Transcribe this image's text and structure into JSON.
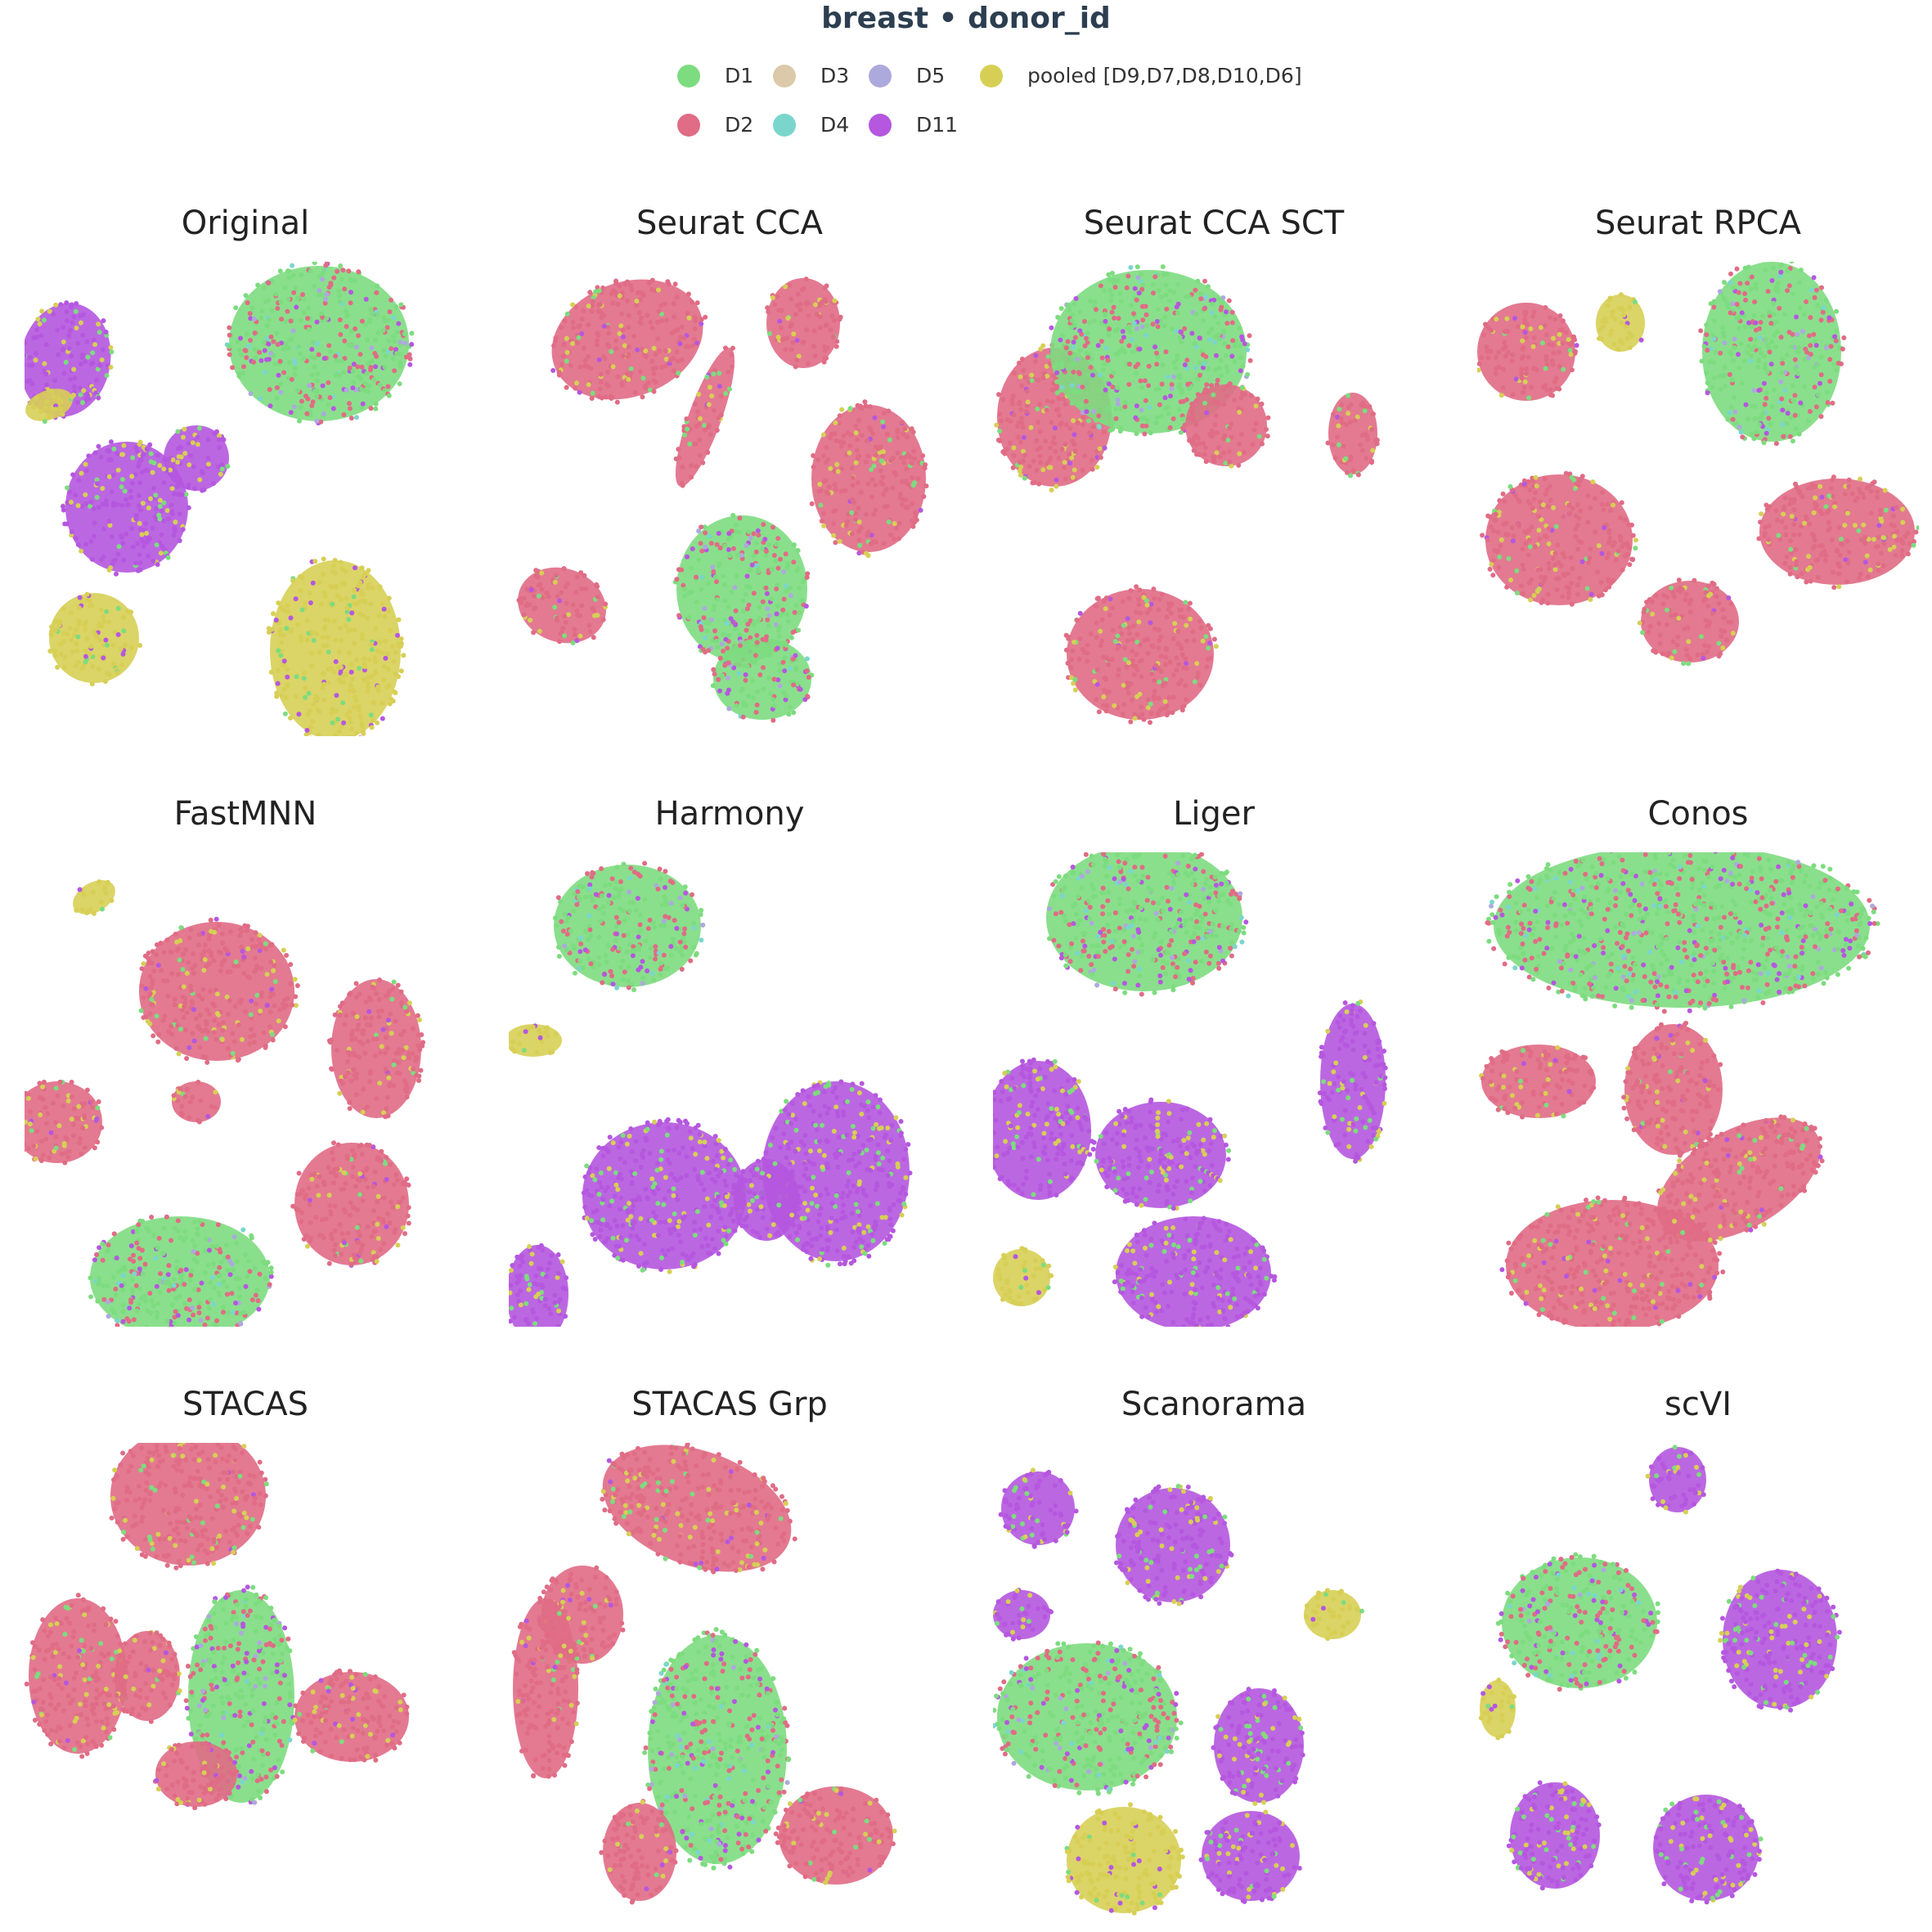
{
  "title": "breast • donor_id",
  "legend": [
    {
      "label": "D1",
      "color": "#7ddc7f"
    },
    {
      "label": "D2",
      "color": "#e06c85"
    },
    {
      "label": "D3",
      "color": "#dcc9aa"
    },
    {
      "label": "D4",
      "color": "#7ad6cd"
    },
    {
      "label": "D5",
      "color": "#ada9dd"
    },
    {
      "label": "D11",
      "color": "#b557df"
    },
    {
      "label": "pooled [D9,D7,D8,D10,D6]",
      "color": "#d7cf55"
    }
  ],
  "chart_data": [
    {
      "type": "scatter",
      "title": "Original",
      "dominant": [
        "D11",
        "pooled [D9,D7,D8,D10,D6]",
        "D1"
      ]
    },
    {
      "type": "scatter",
      "title": "Seurat CCA",
      "dominant": [
        "D2",
        "D1"
      ]
    },
    {
      "type": "scatter",
      "title": "Seurat CCA SCT",
      "dominant": [
        "D2",
        "D1"
      ]
    },
    {
      "type": "scatter",
      "title": "Seurat RPCA",
      "dominant": [
        "D2",
        "D1"
      ]
    },
    {
      "type": "scatter",
      "title": "FastMNN",
      "dominant": [
        "D2",
        "D1"
      ]
    },
    {
      "type": "scatter",
      "title": "Harmony",
      "dominant": [
        "D11",
        "D1"
      ]
    },
    {
      "type": "scatter",
      "title": "Liger",
      "dominant": [
        "D11",
        "D1"
      ]
    },
    {
      "type": "scatter",
      "title": "Conos",
      "dominant": [
        "D2",
        "D1"
      ]
    },
    {
      "type": "scatter",
      "title": "STACAS",
      "dominant": [
        "D2",
        "D1"
      ]
    },
    {
      "type": "scatter",
      "title": "STACAS Grp",
      "dominant": [
        "D2",
        "D1"
      ]
    },
    {
      "type": "scatter",
      "title": "Scanorama",
      "dominant": [
        "D11",
        "D1"
      ]
    },
    {
      "type": "scatter",
      "title": "scVI",
      "dominant": [
        "D11",
        "D1"
      ]
    }
  ]
}
